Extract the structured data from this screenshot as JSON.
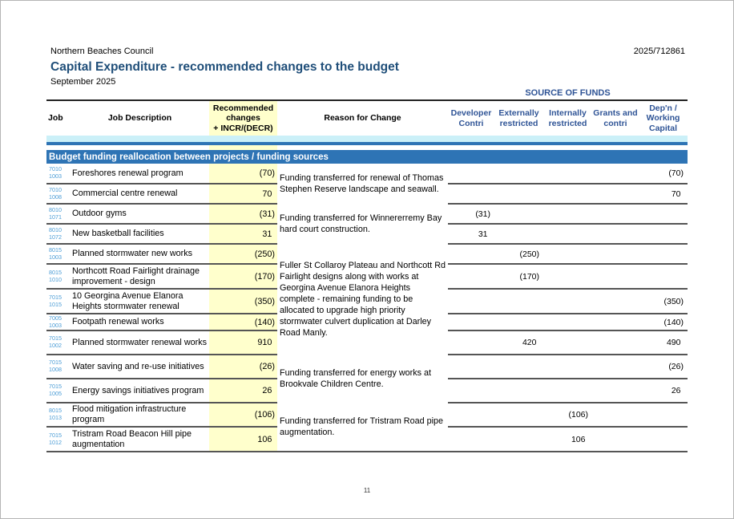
{
  "header": {
    "council": "Northern Beaches Council",
    "doc_number": "2025/712861",
    "title": "Capital Expenditure - recommended changes to the budget",
    "date": "September 2025"
  },
  "table": {
    "source_of_funds_label": "SOURCE OF FUNDS",
    "columns": {
      "job": "Job",
      "description": "Job Description",
      "recommended": [
        "Recommended",
        "changes",
        "+ INCR/(DECR)"
      ],
      "reason": "Reason for Change",
      "funds": [
        "Developer Contri",
        "Externally restricted",
        "Internally restricted",
        "Grants and contri",
        "Dep'n / Working Capital"
      ]
    },
    "section_header": "Budget funding reallocation between projects / funding sources",
    "rows": [
      {
        "job": [
          "7010",
          "1003"
        ],
        "desc": "Foreshores renewal program",
        "rec": "(70)",
        "funds": [
          "",
          "",
          "",
          "",
          "(70)"
        ]
      },
      {
        "job": [
          "7010",
          "1008"
        ],
        "desc": "Commercial centre renewal",
        "rec": "70",
        "funds": [
          "",
          "",
          "",
          "",
          "70"
        ]
      },
      {
        "job": [
          "8010",
          "1071"
        ],
        "desc": "Outdoor gyms",
        "rec": "(31)",
        "funds": [
          "(31)",
          "",
          "",
          "",
          ""
        ]
      },
      {
        "job": [
          "8010",
          "1072"
        ],
        "desc": "New basketball facilities",
        "rec": "31",
        "funds": [
          "31",
          "",
          "",
          "",
          ""
        ]
      },
      {
        "job": [
          "8015",
          "1003"
        ],
        "desc": "Planned stormwater new works",
        "rec": "(250)",
        "funds": [
          "",
          "(250)",
          "",
          "",
          ""
        ]
      },
      {
        "job": [
          "8015",
          "1010"
        ],
        "desc": "Northcott Road Fairlight drainage improvement - design",
        "rec": "(170)",
        "funds": [
          "",
          "(170)",
          "",
          "",
          ""
        ]
      },
      {
        "job": [
          "7015",
          "1015"
        ],
        "desc": "10 Georgina Avenue Elanora Heights stormwater renewal",
        "rec": "(350)",
        "funds": [
          "",
          "",
          "",
          "",
          "(350)"
        ]
      },
      {
        "job": [
          "7005",
          "1003"
        ],
        "desc": "Footpath renewal works",
        "rec": "(140)",
        "funds": [
          "",
          "",
          "",
          "",
          "(140)"
        ]
      },
      {
        "job": [
          "7015",
          "1002"
        ],
        "desc": "Planned stormwater renewal works",
        "rec": "910",
        "funds": [
          "",
          "420",
          "",
          "",
          "490"
        ]
      },
      {
        "job": [
          "7015",
          "1008"
        ],
        "desc": "Water saving and re-use initiatives",
        "rec": "(26)",
        "funds": [
          "",
          "",
          "",
          "",
          "(26)"
        ]
      },
      {
        "job": [
          "7015",
          "1005"
        ],
        "desc": "Energy savings initiatives program",
        "rec": "26",
        "funds": [
          "",
          "",
          "",
          "",
          "26"
        ]
      },
      {
        "job": [
          "8015",
          "1013"
        ],
        "desc": "Flood mitigation infrastructure program",
        "rec": "(106)",
        "funds": [
          "",
          "",
          "(106)",
          "",
          ""
        ]
      },
      {
        "job": [
          "7015",
          "1012"
        ],
        "desc": "Tristram Road Beacon Hill pipe augmentation",
        "rec": "106",
        "funds": [
          "",
          "",
          "106",
          "",
          ""
        ]
      }
    ],
    "reason_groups": [
      {
        "start": 0,
        "span": 2,
        "text": "Funding transferred for renewal of Thomas Stephen Reserve landscape and seawall."
      },
      {
        "start": 2,
        "span": 2,
        "text": "Funding transferred for Winnererremy Bay hard court construction."
      },
      {
        "start": 4,
        "span": 5,
        "text": "Fuller St Collaroy Plateau and Northcott Rd Fairlight designs along with works at Georgina Avenue Elanora Heights complete - remaining funding to be allocated to upgrade high priority stormwater culvert duplication at Darley Road Manly."
      },
      {
        "start": 9,
        "span": 2,
        "text": "Funding transferred for energy works at Brookvale Children Centre."
      },
      {
        "start": 11,
        "span": 2,
        "text": "Funding transferred for Tristram Road pipe augmentation."
      }
    ]
  },
  "page_number": "11",
  "colors": {
    "title-blue": "#1F4E79",
    "header-blue": "#2F5496",
    "accent-blue": "#2E74B5",
    "strip-cyan": "#CBF0F8",
    "highlight-yellow": "#FFFFCC",
    "job-blue": "#4A9CD6",
    "line-gray": "#555555"
  }
}
